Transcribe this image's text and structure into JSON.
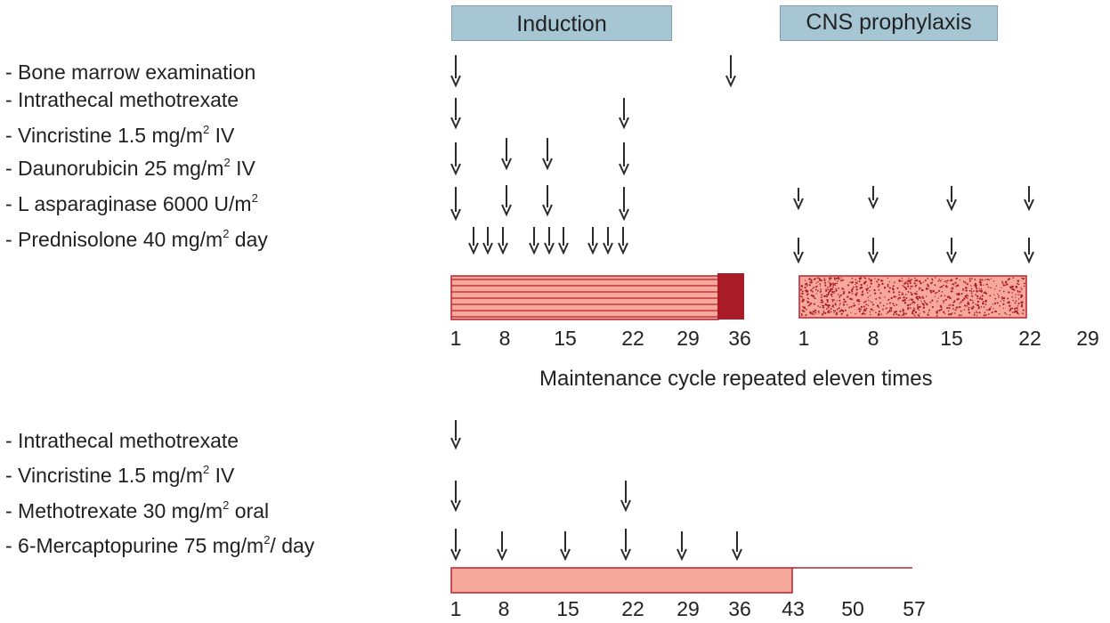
{
  "phases": {
    "induction": "Induction",
    "cns": "CNS prophylaxis"
  },
  "induction_rows": [
    {
      "pre": "- Bone marrow examination",
      "sup": "",
      "post": ""
    },
    {
      "pre": "- Intrathecal methotrexate",
      "sup": "",
      "post": ""
    },
    {
      "pre": "- Vincristine 1.5 mg/m",
      "sup": "2",
      "post": " IV"
    },
    {
      "pre": "- Daunorubicin 25 mg/m",
      "sup": "2",
      "post": " IV"
    },
    {
      "pre": "- L asparaginase 6000 U/m",
      "sup": "2",
      "post": ""
    },
    {
      "pre": "- Prednisolone 40 mg/m",
      "sup": "2",
      "post": " day"
    }
  ],
  "maintenance_rows": [
    {
      "pre": "- Intrathecal methotrexate",
      "sup": "",
      "post": ""
    },
    {
      "pre": "- Vincristine 1.5 mg/m",
      "sup": "2",
      "post": " IV"
    },
    {
      "pre": "- Methotrexate 30 mg/m",
      "sup": "2",
      "post": " oral"
    },
    {
      "pre": "- 6-Mercaptopurine 75 mg/m",
      "sup": "2",
      "post": "/ day"
    }
  ],
  "induction_axis": [
    "1",
    "8",
    "15",
    "22",
    "29",
    "36"
  ],
  "cns_axis": [
    "1",
    "8",
    "15",
    "22",
    "29"
  ],
  "maintenance_axis": [
    "1",
    "8",
    "15",
    "22",
    "29",
    "36",
    "43",
    "50",
    "57"
  ],
  "maintenance_caption": "Maintenance cycle repeated eleven times",
  "colors": {
    "phase_box": "#a7c6d4",
    "bar_fill": "#f6a99b",
    "bar_stroke": "#b8222e",
    "dark_block": "#a91c27",
    "arrow": "#2a2a2a"
  }
}
